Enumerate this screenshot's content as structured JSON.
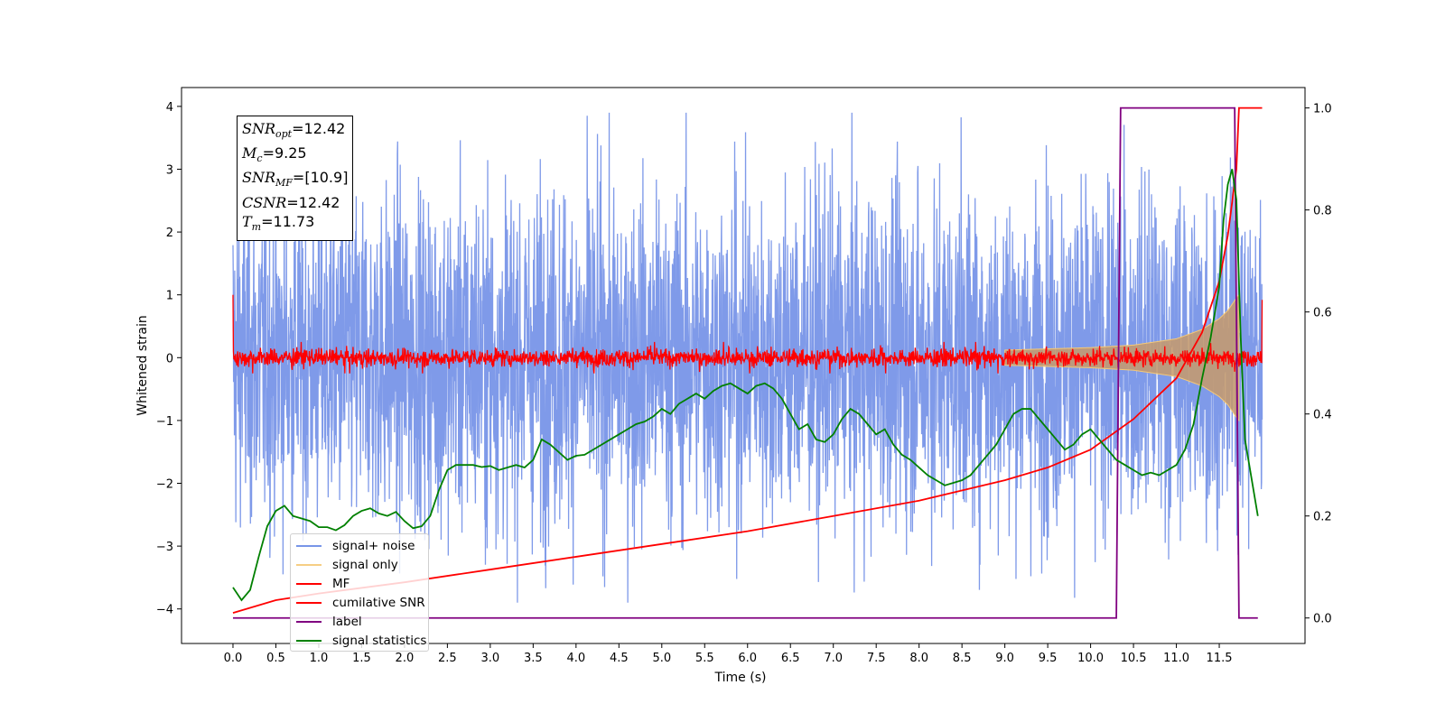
{
  "chart_data": {
    "type": "line",
    "xlabel": "Time (s)",
    "ylabel": "Whitened strain",
    "xlim": [
      -0.6,
      12.5
    ],
    "ylim": [
      -4.55,
      4.3
    ],
    "y2lim": [
      -0.05,
      1.04
    ],
    "x_ticks": [
      "0.0",
      "0.5",
      "1.0",
      "1.5",
      "2.0",
      "2.5",
      "3.0",
      "3.5",
      "4.0",
      "4.5",
      "5.0",
      "5.5",
      "6.0",
      "6.5",
      "7.0",
      "7.5",
      "8.0",
      "8.5",
      "9.0",
      "9.5",
      "10.0",
      "10.5",
      "11.0",
      "11.5"
    ],
    "y_ticks": [
      "4",
      "3",
      "2",
      "1",
      "0",
      "−1",
      "−2",
      "−3",
      "−4"
    ],
    "y2_ticks": [
      "1.0",
      "0.8",
      "0.6",
      "0.4",
      "0.2",
      "0.0"
    ],
    "annotation": {
      "snr_opt": "12.42",
      "mc": "9.25",
      "snr_mf": "[10.9]",
      "csnr": "12.42",
      "tm": "11.73"
    },
    "series": [
      {
        "name": "signal+ noise",
        "color": "#7895e8",
        "axis": "left",
        "amplitude_range": [
          -3.9,
          3.9
        ],
        "x_range": [
          0.0,
          12.0
        ]
      },
      {
        "name": "signal only",
        "color": "#f5c977",
        "axis": "left",
        "envelope": [
          [
            9.0,
            0.12
          ],
          [
            10.0,
            0.16
          ],
          [
            10.5,
            0.2
          ],
          [
            11.0,
            0.3
          ],
          [
            11.3,
            0.45
          ],
          [
            11.5,
            0.62
          ],
          [
            11.6,
            0.75
          ],
          [
            11.7,
            0.95
          ],
          [
            11.73,
            1.0
          ]
        ]
      },
      {
        "name": "MF",
        "color": "#ff0000",
        "axis": "left",
        "x_range": [
          0.0,
          12.0
        ],
        "level": 0.0,
        "amplitude": 0.25,
        "start_value": 1.0,
        "end_value": 0.92
      },
      {
        "name": "cumilative SNR",
        "color": "#ff0000",
        "axis": "right",
        "points": [
          [
            0.0,
            0.01
          ],
          [
            0.5,
            0.035
          ],
          [
            1.0,
            0.048
          ],
          [
            2.0,
            0.07
          ],
          [
            3.0,
            0.095
          ],
          [
            4.0,
            0.12
          ],
          [
            5.0,
            0.145
          ],
          [
            6.0,
            0.17
          ],
          [
            7.0,
            0.2
          ],
          [
            8.0,
            0.23
          ],
          [
            9.0,
            0.27
          ],
          [
            9.5,
            0.295
          ],
          [
            10.0,
            0.33
          ],
          [
            10.5,
            0.39
          ],
          [
            11.0,
            0.47
          ],
          [
            11.3,
            0.56
          ],
          [
            11.5,
            0.66
          ],
          [
            11.6,
            0.75
          ],
          [
            11.7,
            0.88
          ],
          [
            11.73,
            1.0
          ],
          [
            12.0,
            1.0
          ]
        ]
      },
      {
        "name": "label",
        "color": "#800080",
        "axis": "right",
        "points": [
          [
            0.0,
            0.0
          ],
          [
            10.3,
            0.0
          ],
          [
            10.35,
            1.0
          ],
          [
            11.68,
            1.0
          ],
          [
            11.73,
            0.0
          ],
          [
            11.95,
            0.0
          ]
        ]
      },
      {
        "name": "signal statistics",
        "color": "#008000",
        "axis": "right",
        "points": [
          [
            0.0,
            0.06
          ],
          [
            0.1,
            0.035
          ],
          [
            0.2,
            0.055
          ],
          [
            0.3,
            0.12
          ],
          [
            0.4,
            0.18
          ],
          [
            0.5,
            0.21
          ],
          [
            0.6,
            0.22
          ],
          [
            0.7,
            0.2
          ],
          [
            0.8,
            0.195
          ],
          [
            0.9,
            0.19
          ],
          [
            1.0,
            0.178
          ],
          [
            1.1,
            0.178
          ],
          [
            1.2,
            0.172
          ],
          [
            1.3,
            0.182
          ],
          [
            1.4,
            0.2
          ],
          [
            1.5,
            0.21
          ],
          [
            1.6,
            0.215
          ],
          [
            1.7,
            0.205
          ],
          [
            1.8,
            0.2
          ],
          [
            1.9,
            0.208
          ],
          [
            2.0,
            0.19
          ],
          [
            2.1,
            0.176
          ],
          [
            2.2,
            0.18
          ],
          [
            2.3,
            0.2
          ],
          [
            2.4,
            0.25
          ],
          [
            2.5,
            0.29
          ],
          [
            2.6,
            0.3
          ],
          [
            2.7,
            0.3
          ],
          [
            2.8,
            0.3
          ],
          [
            2.9,
            0.296
          ],
          [
            3.0,
            0.298
          ],
          [
            3.1,
            0.29
          ],
          [
            3.2,
            0.295
          ],
          [
            3.3,
            0.3
          ],
          [
            3.4,
            0.295
          ],
          [
            3.5,
            0.31
          ],
          [
            3.6,
            0.35
          ],
          [
            3.7,
            0.34
          ],
          [
            3.8,
            0.325
          ],
          [
            3.9,
            0.31
          ],
          [
            4.0,
            0.318
          ],
          [
            4.1,
            0.32
          ],
          [
            4.2,
            0.33
          ],
          [
            4.3,
            0.34
          ],
          [
            4.4,
            0.35
          ],
          [
            4.5,
            0.36
          ],
          [
            4.6,
            0.37
          ],
          [
            4.7,
            0.38
          ],
          [
            4.8,
            0.385
          ],
          [
            4.9,
            0.395
          ],
          [
            5.0,
            0.41
          ],
          [
            5.1,
            0.4
          ],
          [
            5.2,
            0.42
          ],
          [
            5.3,
            0.43
          ],
          [
            5.4,
            0.44
          ],
          [
            5.5,
            0.43
          ],
          [
            5.6,
            0.445
          ],
          [
            5.7,
            0.455
          ],
          [
            5.8,
            0.46
          ],
          [
            5.9,
            0.45
          ],
          [
            6.0,
            0.44
          ],
          [
            6.1,
            0.455
          ],
          [
            6.2,
            0.46
          ],
          [
            6.3,
            0.45
          ],
          [
            6.4,
            0.43
          ],
          [
            6.5,
            0.4
          ],
          [
            6.6,
            0.37
          ],
          [
            6.7,
            0.38
          ],
          [
            6.8,
            0.35
          ],
          [
            6.9,
            0.345
          ],
          [
            7.0,
            0.36
          ],
          [
            7.1,
            0.39
          ],
          [
            7.2,
            0.41
          ],
          [
            7.3,
            0.4
          ],
          [
            7.4,
            0.38
          ],
          [
            7.5,
            0.36
          ],
          [
            7.6,
            0.37
          ],
          [
            7.7,
            0.34
          ],
          [
            7.8,
            0.32
          ],
          [
            7.9,
            0.31
          ],
          [
            8.0,
            0.295
          ],
          [
            8.1,
            0.28
          ],
          [
            8.2,
            0.27
          ],
          [
            8.3,
            0.26
          ],
          [
            8.4,
            0.265
          ],
          [
            8.5,
            0.27
          ],
          [
            8.6,
            0.28
          ],
          [
            8.7,
            0.3
          ],
          [
            8.8,
            0.32
          ],
          [
            8.9,
            0.34
          ],
          [
            9.0,
            0.37
          ],
          [
            9.1,
            0.4
          ],
          [
            9.2,
            0.41
          ],
          [
            9.3,
            0.41
          ],
          [
            9.4,
            0.39
          ],
          [
            9.5,
            0.37
          ],
          [
            9.6,
            0.35
          ],
          [
            9.7,
            0.33
          ],
          [
            9.8,
            0.34
          ],
          [
            9.9,
            0.36
          ],
          [
            10.0,
            0.37
          ],
          [
            10.1,
            0.35
          ],
          [
            10.2,
            0.33
          ],
          [
            10.3,
            0.31
          ],
          [
            10.4,
            0.3
          ],
          [
            10.5,
            0.29
          ],
          [
            10.6,
            0.28
          ],
          [
            10.7,
            0.285
          ],
          [
            10.8,
            0.28
          ],
          [
            10.9,
            0.29
          ],
          [
            11.0,
            0.3
          ],
          [
            11.1,
            0.33
          ],
          [
            11.2,
            0.38
          ],
          [
            11.3,
            0.47
          ],
          [
            11.4,
            0.55
          ],
          [
            11.5,
            0.65
          ],
          [
            11.55,
            0.78
          ],
          [
            11.6,
            0.85
          ],
          [
            11.65,
            0.88
          ],
          [
            11.7,
            0.82
          ],
          [
            11.75,
            0.55
          ],
          [
            11.8,
            0.35
          ],
          [
            11.9,
            0.25
          ],
          [
            11.95,
            0.2
          ]
        ]
      }
    ]
  }
}
